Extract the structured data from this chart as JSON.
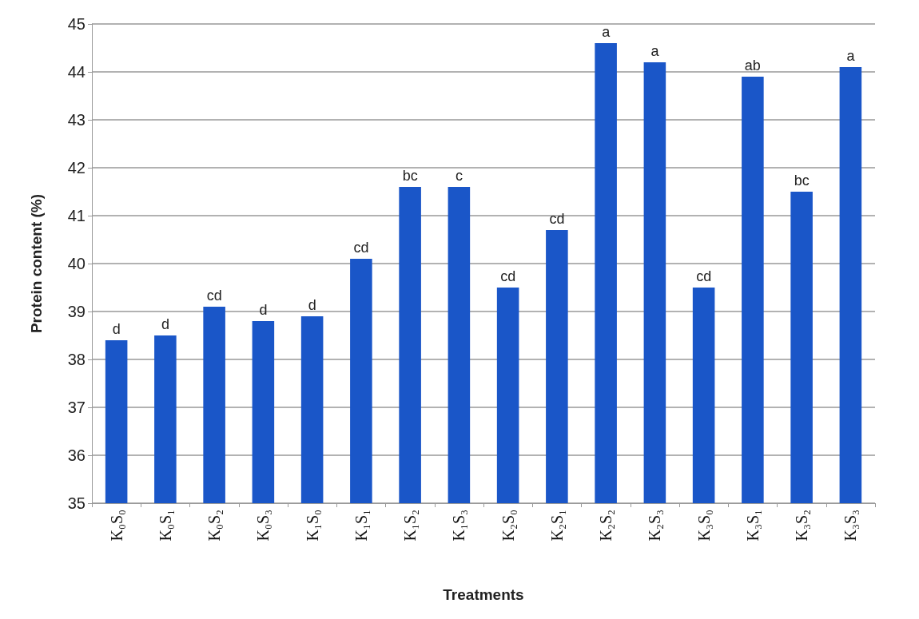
{
  "chart_data": {
    "type": "bar",
    "xlabel": "Treatments",
    "ylabel": "Protein content (%)",
    "categories": [
      "K₀S₀",
      "K₀S₁",
      "K₀S₂",
      "K₀S₃",
      "K₁S₀",
      "K₁S₁",
      "K₁S₂",
      "K₁S₃",
      "K₂S₀",
      "K₂S₁",
      "K₂S₂",
      "K₂S₃",
      "K₃S₀",
      "K₃S₁",
      "K₃S₂",
      "K₃S₃"
    ],
    "values": [
      38.4,
      38.5,
      39.1,
      38.8,
      38.9,
      40.1,
      41.6,
      41.6,
      39.5,
      40.7,
      44.6,
      44.2,
      39.5,
      43.9,
      41.5,
      44.1
    ],
    "value_labels": [
      "d",
      "d",
      "cd",
      "d",
      "d",
      "cd",
      "bc",
      "c",
      "cd",
      "cd",
      "a",
      "a",
      "cd",
      "ab",
      "bc",
      "a"
    ],
    "color": "#1a56c8",
    "ylim": [
      35,
      45
    ],
    "yticks": [
      35,
      36,
      37,
      38,
      39,
      40,
      41,
      42,
      43,
      44,
      45
    ],
    "grid": "y"
  }
}
